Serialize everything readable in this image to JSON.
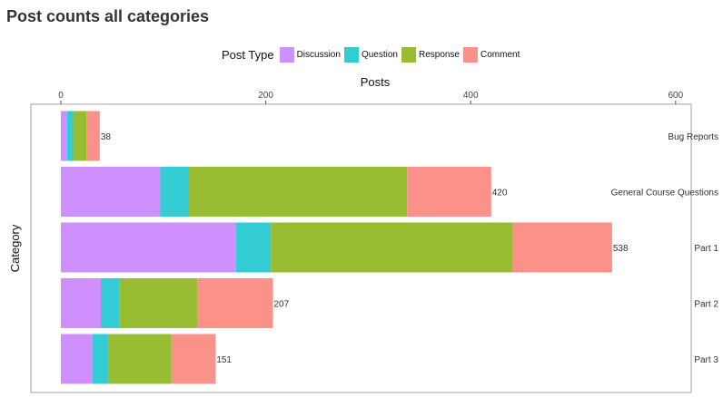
{
  "page": {
    "title": "Post counts all categories"
  },
  "legend": {
    "title": "Post Type",
    "items": [
      {
        "label": "Discussion",
        "color": "#cf8ffd",
        "icon": "legend-swatch"
      },
      {
        "label": "Question",
        "color": "#33ccd4",
        "icon": "legend-swatch"
      },
      {
        "label": "Response",
        "color": "#98bd33",
        "icon": "legend-swatch"
      },
      {
        "label": "Comment",
        "color": "#fc918a",
        "icon": "legend-swatch"
      }
    ]
  },
  "chart_data": {
    "type": "bar",
    "orientation": "horizontal",
    "stacked": true,
    "title": "",
    "xlabel": "Posts",
    "ylabel": "Category",
    "xlim": [
      0,
      660
    ],
    "x_ticks": [
      0,
      200,
      400,
      600
    ],
    "x_axis_position": "top",
    "grid": false,
    "legend_position": "top",
    "categories": [
      "Bug Reports",
      "General Course Questions",
      "Part 1",
      "Part 2",
      "Part 3"
    ],
    "series": [
      {
        "name": "Discussion",
        "color": "#cf8ffd",
        "values": [
          6,
          97,
          171,
          39,
          31
        ]
      },
      {
        "name": "Question",
        "color": "#33ccd4",
        "values": [
          6,
          28,
          34,
          18,
          15
        ]
      },
      {
        "name": "Response",
        "color": "#98bd33",
        "values": [
          13,
          213,
          236,
          76,
          62
        ]
      },
      {
        "name": "Comment",
        "color": "#fc918a",
        "values": [
          13,
          82,
          97,
          74,
          43
        ]
      }
    ],
    "totals": [
      38,
      420,
      538,
      207,
      151
    ]
  }
}
